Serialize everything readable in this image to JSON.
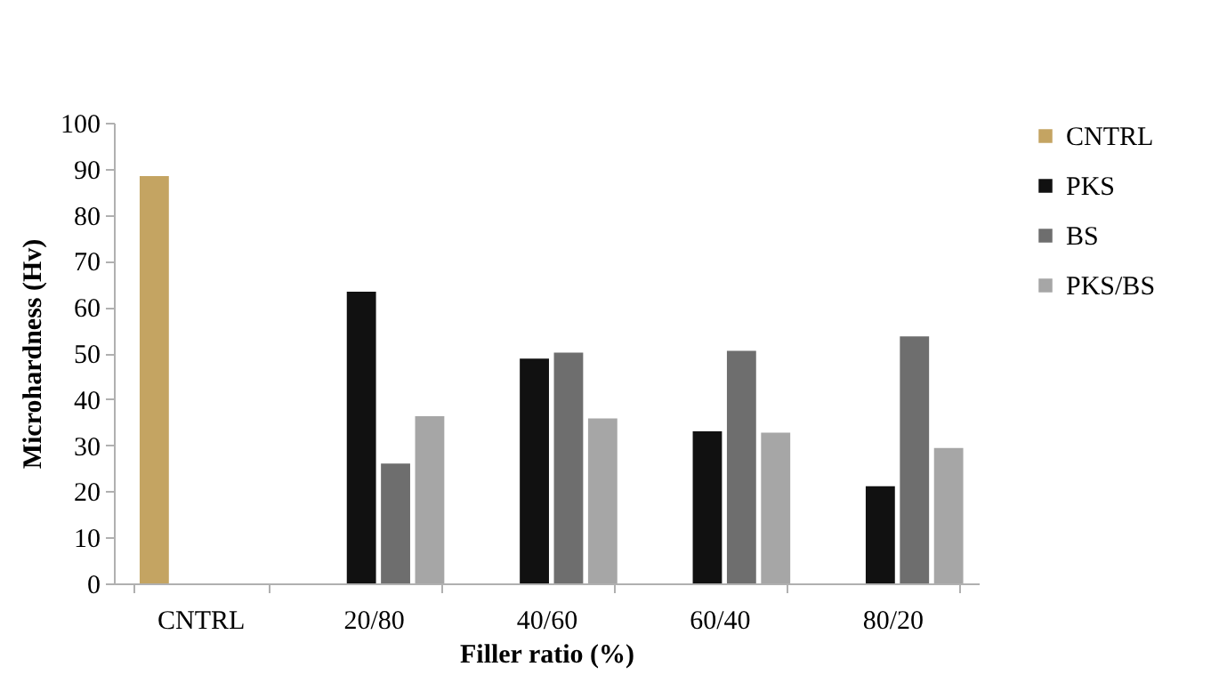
{
  "chart_data": {
    "type": "bar",
    "xlabel": "Filler ratio (%)",
    "ylabel": "Microhardness (Hv)",
    "categories": [
      "CNTRL",
      "20/80",
      "40/60",
      "60/40",
      "80/20"
    ],
    "series": [
      {
        "name": "CNTRL",
        "color": "#c4a462",
        "values": [
          88.4,
          null,
          null,
          null,
          null
        ]
      },
      {
        "name": "PKS",
        "color": "#111111",
        "values": [
          null,
          63.3,
          48.8,
          33,
          21.1
        ]
      },
      {
        "name": "BS",
        "color": "#6e6e6e",
        "values": [
          null,
          26,
          50.1,
          50.5,
          53.6
        ]
      },
      {
        "name": "PKS/BS",
        "color": "#a6a6a6",
        "values": [
          null,
          36.3,
          35.8,
          32.7,
          29.4
        ]
      }
    ],
    "ylim": [
      0,
      100
    ],
    "yticks": [
      0,
      10,
      20,
      30,
      40,
      50,
      60,
      70,
      80,
      90,
      100
    ],
    "grid": false,
    "legend": "right"
  }
}
